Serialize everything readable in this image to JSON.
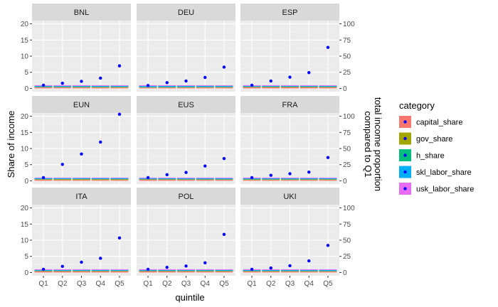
{
  "chart_data": {
    "type": "bar",
    "facet_layout": "3x3",
    "categories": [
      "Q1",
      "Q2",
      "Q3",
      "Q4",
      "Q5"
    ],
    "xlabel": "quintile",
    "ylabel": "Share of income",
    "ylabel_right": [
      "total income proportion",
      "compared to Q1"
    ],
    "ylim": [
      0,
      20
    ],
    "yticks": [
      0,
      5,
      10,
      15,
      20
    ],
    "ylim_right": [
      0,
      100
    ],
    "yticks_right": [
      0,
      25,
      50,
      75,
      100
    ],
    "legend_title": "category",
    "legend_position": "right",
    "legend": [
      {
        "name": "capital_share",
        "color": "#F8766D"
      },
      {
        "name": "gov_share",
        "color": "#A3A500"
      },
      {
        "name": "h_share",
        "color": "#00BF7D"
      },
      {
        "name": "skl_labor_share",
        "color": "#00B0F6"
      },
      {
        "name": "usk_labor_share",
        "color": "#E76BF3"
      }
    ],
    "point_color": "#0000FF",
    "background": "#EBEBEB",
    "grid": true,
    "panels": [
      {
        "name": "BNL",
        "points": [
          1.0,
          1.6,
          2.2,
          3.2,
          7.0
        ],
        "bars": [
          [
            0.3,
            0.14,
            0.02,
            0.3,
            0.24
          ],
          [
            0.28,
            0.16,
            0.02,
            0.31,
            0.23
          ],
          [
            0.27,
            0.17,
            0.02,
            0.31,
            0.23
          ],
          [
            0.26,
            0.18,
            0.02,
            0.32,
            0.22
          ],
          [
            0.26,
            0.18,
            0.02,
            0.33,
            0.21
          ]
        ]
      },
      {
        "name": "DEU",
        "points": [
          0.9,
          1.8,
          2.3,
          3.4,
          6.6
        ],
        "bars": [
          [
            0.24,
            0.14,
            0.03,
            0.34,
            0.25
          ],
          [
            0.25,
            0.15,
            0.03,
            0.33,
            0.24
          ],
          [
            0.26,
            0.15,
            0.03,
            0.33,
            0.23
          ],
          [
            0.26,
            0.16,
            0.03,
            0.33,
            0.22
          ],
          [
            0.27,
            0.16,
            0.03,
            0.33,
            0.21
          ]
        ]
      },
      {
        "name": "ESP",
        "points": [
          1.0,
          2.3,
          3.5,
          4.9,
          12.7
        ],
        "bars": [
          [
            0.34,
            0.16,
            0.02,
            0.24,
            0.24
          ],
          [
            0.33,
            0.17,
            0.02,
            0.25,
            0.23
          ],
          [
            0.32,
            0.17,
            0.02,
            0.26,
            0.23
          ],
          [
            0.31,
            0.18,
            0.02,
            0.27,
            0.22
          ],
          [
            0.3,
            0.18,
            0.02,
            0.28,
            0.22
          ]
        ]
      },
      {
        "name": "EUN",
        "points": [
          1.0,
          5.1,
          8.3,
          12.0,
          20.6
        ],
        "bars": [
          [
            0.3,
            0.18,
            0.05,
            0.3,
            0.17
          ],
          [
            0.29,
            0.22,
            0.04,
            0.28,
            0.17
          ],
          [
            0.29,
            0.22,
            0.04,
            0.28,
            0.17
          ],
          [
            0.28,
            0.22,
            0.04,
            0.29,
            0.17
          ],
          [
            0.28,
            0.22,
            0.04,
            0.29,
            0.17
          ]
        ]
      },
      {
        "name": "EUS",
        "points": [
          1.0,
          1.9,
          2.6,
          4.6,
          6.9
        ],
        "bars": [
          [
            0.32,
            0.16,
            0.02,
            0.3,
            0.2
          ],
          [
            0.31,
            0.17,
            0.02,
            0.3,
            0.2
          ],
          [
            0.3,
            0.17,
            0.02,
            0.31,
            0.2
          ],
          [
            0.3,
            0.17,
            0.02,
            0.31,
            0.2
          ],
          [
            0.29,
            0.17,
            0.02,
            0.32,
            0.2
          ]
        ]
      },
      {
        "name": "FRA",
        "points": [
          1.0,
          1.7,
          2.2,
          2.7,
          7.2
        ],
        "bars": [
          [
            0.26,
            0.18,
            0.03,
            0.3,
            0.23
          ],
          [
            0.27,
            0.18,
            0.03,
            0.3,
            0.22
          ],
          [
            0.27,
            0.18,
            0.03,
            0.3,
            0.22
          ],
          [
            0.28,
            0.18,
            0.03,
            0.3,
            0.21
          ],
          [
            0.29,
            0.18,
            0.03,
            0.3,
            0.2
          ]
        ]
      },
      {
        "name": "ITA",
        "points": [
          1.0,
          1.9,
          3.2,
          4.4,
          10.7
        ],
        "bars": [
          [
            0.33,
            0.16,
            0.02,
            0.27,
            0.22
          ],
          [
            0.33,
            0.16,
            0.02,
            0.27,
            0.22
          ],
          [
            0.34,
            0.16,
            0.02,
            0.27,
            0.21
          ],
          [
            0.34,
            0.16,
            0.02,
            0.27,
            0.21
          ],
          [
            0.35,
            0.16,
            0.02,
            0.27,
            0.2
          ]
        ]
      },
      {
        "name": "POL",
        "points": [
          1.0,
          1.6,
          2.0,
          3.0,
          11.8
        ],
        "bars": [
          [
            0.32,
            0.17,
            0.02,
            0.26,
            0.23
          ],
          [
            0.31,
            0.17,
            0.02,
            0.27,
            0.23
          ],
          [
            0.3,
            0.18,
            0.02,
            0.27,
            0.23
          ],
          [
            0.3,
            0.18,
            0.02,
            0.28,
            0.22
          ],
          [
            0.3,
            0.18,
            0.02,
            0.28,
            0.22
          ]
        ]
      },
      {
        "name": "UKI",
        "points": [
          1.0,
          1.4,
          2.1,
          3.6,
          8.4
        ],
        "bars": [
          [
            0.3,
            0.15,
            0.02,
            0.3,
            0.23
          ],
          [
            0.29,
            0.16,
            0.02,
            0.31,
            0.22
          ],
          [
            0.29,
            0.16,
            0.02,
            0.31,
            0.22
          ],
          [
            0.28,
            0.16,
            0.02,
            0.32,
            0.22
          ],
          [
            0.28,
            0.16,
            0.02,
            0.33,
            0.21
          ]
        ]
      }
    ]
  }
}
